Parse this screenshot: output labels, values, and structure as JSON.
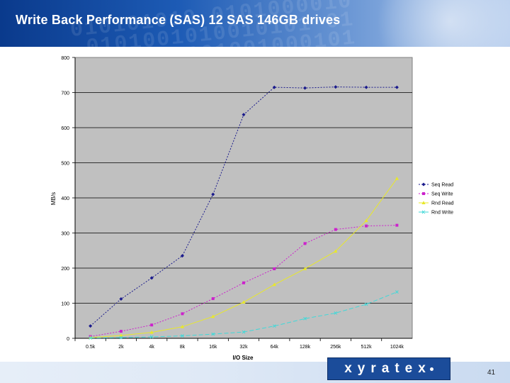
{
  "slide": {
    "title": "Write Back Performance (SAS) 12 SAS 146GB drives",
    "header_pattern": "010101010 0101000010\n 0101001010010101 01\n10100010101001000101",
    "logo_text": "xyratex",
    "page_number": "41",
    "colors": {
      "header_blue": "#1d5bb5",
      "logo_blue": "#1b4c9a"
    }
  },
  "chart_data": {
    "type": "line",
    "xlabel": "I/O Size",
    "ylabel": "MB/s",
    "categories": [
      "0.5k",
      "2k",
      "4k",
      "8k",
      "16k",
      "32k",
      "64k",
      "128k",
      "256k",
      "512k",
      "1024k"
    ],
    "ylim": [
      0,
      800
    ],
    "yticks": [
      0,
      100,
      200,
      300,
      400,
      500,
      600,
      700,
      800
    ],
    "grid": "horizontal major gridlines",
    "plot_background": "#c0c0c0",
    "legend_position": "right",
    "series": [
      {
        "name": "Seq Read",
        "color": "#1a1a8c",
        "marker": "diamond",
        "dash": "2,2",
        "values": [
          35,
          112,
          172,
          235,
          410,
          637,
          715,
          713,
          716,
          715,
          715
        ]
      },
      {
        "name": "Seq Write",
        "color": "#cc22cc",
        "marker": "square",
        "dash": "2,2",
        "values": [
          5,
          20,
          38,
          70,
          113,
          158,
          198,
          270,
          310,
          320,
          322
        ]
      },
      {
        "name": "Rnd Read",
        "color": "#e8e82a",
        "marker": "triangle",
        "dash": "",
        "values": [
          2,
          8,
          17,
          33,
          62,
          103,
          153,
          198,
          248,
          335,
          455
        ]
      },
      {
        "name": "Rnd Write",
        "color": "#40d8d8",
        "marker": "x",
        "dash": "6,3",
        "values": [
          1,
          2,
          4,
          7,
          12,
          18,
          35,
          56,
          72,
          97,
          132
        ]
      }
    ]
  }
}
